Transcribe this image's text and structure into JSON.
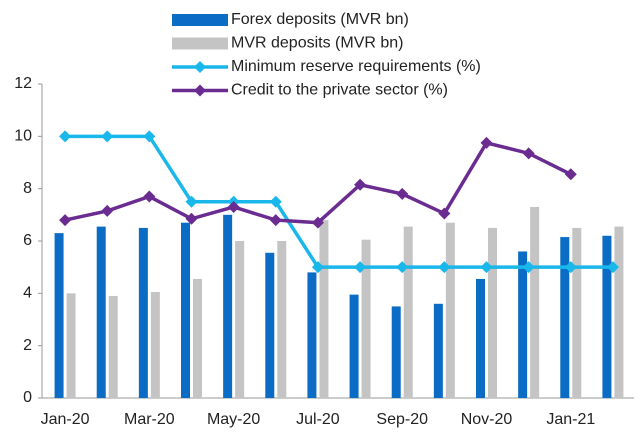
{
  "chart_data": {
    "type": "bar",
    "categories": [
      "Jan-20",
      null,
      "Mar-20",
      null,
      "May-20",
      null,
      "Jul-20",
      null,
      "Sep-20",
      null,
      "Nov-20",
      null,
      "Jan-21",
      null
    ],
    "series": [
      {
        "name": "Forex deposits (MVR bn)",
        "type": "bar",
        "color": "#0a6cc4",
        "values": [
          6.3,
          6.55,
          6.5,
          6.7,
          7.0,
          5.55,
          4.8,
          3.95,
          3.5,
          3.6,
          4.55,
          5.6,
          6.15,
          6.2
        ]
      },
      {
        "name": "MVR deposits (MVR bn)",
        "type": "bar",
        "color": "#c4c4c4",
        "values": [
          4.0,
          3.9,
          4.05,
          4.55,
          6.0,
          6.0,
          6.8,
          6.05,
          6.55,
          6.7,
          6.5,
          7.3,
          6.5,
          6.55
        ]
      },
      {
        "name": "Minimum reserve requirements (%)",
        "type": "line",
        "color": "#1ab7ea",
        "values": [
          10,
          10,
          10,
          7.5,
          7.5,
          7.5,
          5,
          5,
          5,
          5,
          5,
          5,
          5,
          5
        ]
      },
      {
        "name": "Credit to the private sector (%)",
        "type": "line",
        "color": "#6a2c91",
        "values": [
          6.8,
          7.15,
          7.7,
          6.85,
          7.3,
          6.8,
          6.7,
          8.15,
          7.8,
          7.05,
          9.75,
          9.35,
          8.55,
          null
        ]
      }
    ],
    "ylim": [
      0,
      12
    ],
    "yticks": [
      0,
      2,
      4,
      6,
      8,
      10,
      12
    ],
    "grid": false
  }
}
